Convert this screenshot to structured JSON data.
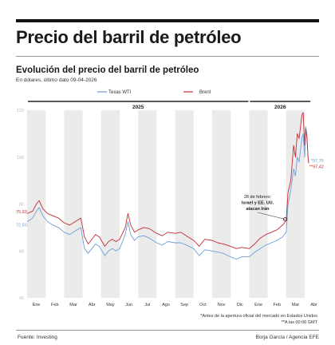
{
  "header": {
    "title": "Precio del barril de petróleo",
    "subtitle": "Evolución del precio del barril de petróleo",
    "note": "En dólares, último dato 09-04-2026"
  },
  "colors": {
    "wti": "#6f9ed8",
    "brent": "#c72a35",
    "band": "#ebebeb",
    "year_bar": "#5a5a5a"
  },
  "footer": {
    "source": "Fuente: Investing",
    "credit": "Borja García / Agencia EFE",
    "footnote_line1": "*Antes de la apertura oficial del mercado en Estados Unidos",
    "footnote_line2": "**A las 00:00 GMT"
  },
  "chart_data": {
    "type": "line",
    "title": "Evolución del precio del barril de petróleo",
    "subtitle": "En dólares, último dato 09-04-2026",
    "x_unit": "month index (0 = Jan 2025)",
    "ylim": [
      40,
      120
    ],
    "yticks": [
      40,
      60,
      80,
      100,
      120
    ],
    "years": [
      {
        "label": "2025",
        "from": 0,
        "to": 12
      },
      {
        "label": "2026",
        "from": 12,
        "to": 15.35
      }
    ],
    "months": [
      "Ene",
      "Feb",
      "Mar",
      "Abr",
      "May",
      "Jun",
      "Jul",
      "Ago",
      "Sep",
      "Oct",
      "Nov",
      "Dic",
      "Ene",
      "Feb",
      "Mar",
      "Abr"
    ],
    "legend": [
      "Texas WTI",
      "Brent"
    ],
    "start_labels": {
      "brent": "75,93",
      "wti": "72,50"
    },
    "end_labels": {
      "wti": "97,75",
      "brent": "97,42",
      "wti_marker": "*",
      "brent_marker": "**"
    },
    "annotation": [
      "28 de febrero:",
      "Israel y EE. UU.",
      "atacan Irán"
    ],
    "series": [
      {
        "name": "Brent",
        "points": [
          [
            0,
            75.9
          ],
          [
            0.3,
            77
          ],
          [
            0.5,
            80
          ],
          [
            0.65,
            81.5
          ],
          [
            0.85,
            78
          ],
          [
            1.1,
            76
          ],
          [
            1.4,
            75
          ],
          [
            1.7,
            74
          ],
          [
            2.0,
            72
          ],
          [
            2.3,
            71
          ],
          [
            2.6,
            72.5
          ],
          [
            2.9,
            74
          ],
          [
            3.1,
            66
          ],
          [
            3.3,
            63
          ],
          [
            3.5,
            65
          ],
          [
            3.7,
            67
          ],
          [
            3.9,
            66
          ],
          [
            4.2,
            62
          ],
          [
            4.4,
            64
          ],
          [
            4.6,
            65
          ],
          [
            4.8,
            64
          ],
          [
            5.0,
            65
          ],
          [
            5.3,
            70
          ],
          [
            5.45,
            76
          ],
          [
            5.6,
            71
          ],
          [
            5.8,
            68
          ],
          [
            6.0,
            69
          ],
          [
            6.3,
            70
          ],
          [
            6.6,
            69.5
          ],
          [
            7.0,
            67.5
          ],
          [
            7.3,
            66.5
          ],
          [
            7.6,
            68
          ],
          [
            8.0,
            67.5
          ],
          [
            8.3,
            68
          ],
          [
            8.6,
            66.5
          ],
          [
            9.0,
            64.5
          ],
          [
            9.3,
            62
          ],
          [
            9.6,
            65
          ],
          [
            10.0,
            64.5
          ],
          [
            10.3,
            63.5
          ],
          [
            10.6,
            63
          ],
          [
            11.0,
            62
          ],
          [
            11.3,
            61
          ],
          [
            11.6,
            61.5
          ],
          [
            12.0,
            61
          ],
          [
            12.3,
            63
          ],
          [
            12.6,
            65.5
          ],
          [
            12.9,
            67
          ],
          [
            13.2,
            68
          ],
          [
            13.5,
            69
          ],
          [
            13.8,
            71
          ],
          [
            14.0,
            73
          ],
          [
            14.1,
            85
          ],
          [
            14.25,
            90
          ],
          [
            14.4,
            105
          ],
          [
            14.5,
            100
          ],
          [
            14.6,
            110
          ],
          [
            14.7,
            108
          ],
          [
            14.85,
            118
          ],
          [
            14.92,
            119
          ],
          [
            15.0,
            105
          ],
          [
            15.05,
            112
          ],
          [
            15.12,
            108
          ],
          [
            15.18,
            100
          ],
          [
            15.22,
            97.4
          ]
        ]
      },
      {
        "name": "Texas WTI",
        "points": [
          [
            0,
            72.5
          ],
          [
            0.3,
            74
          ],
          [
            0.5,
            77
          ],
          [
            0.65,
            78.5
          ],
          [
            0.85,
            75
          ],
          [
            1.1,
            72.5
          ],
          [
            1.4,
            71
          ],
          [
            1.7,
            70
          ],
          [
            2.0,
            68
          ],
          [
            2.3,
            67
          ],
          [
            2.6,
            68.5
          ],
          [
            2.9,
            70
          ],
          [
            3.1,
            61
          ],
          [
            3.3,
            59
          ],
          [
            3.5,
            61
          ],
          [
            3.7,
            63
          ],
          [
            3.9,
            62
          ],
          [
            4.2,
            58
          ],
          [
            4.4,
            60
          ],
          [
            4.6,
            61
          ],
          [
            4.8,
            60
          ],
          [
            5.0,
            61
          ],
          [
            5.3,
            67
          ],
          [
            5.45,
            72.5
          ],
          [
            5.6,
            67
          ],
          [
            5.8,
            64.5
          ],
          [
            6.0,
            66
          ],
          [
            6.3,
            66.5
          ],
          [
            6.6,
            65.5
          ],
          [
            7.0,
            63.5
          ],
          [
            7.3,
            62.5
          ],
          [
            7.6,
            64
          ],
          [
            8.0,
            63.5
          ],
          [
            8.3,
            63.5
          ],
          [
            8.6,
            62.5
          ],
          [
            9.0,
            61
          ],
          [
            9.3,
            58
          ],
          [
            9.6,
            60.5
          ],
          [
            10.0,
            60
          ],
          [
            10.3,
            59.5
          ],
          [
            10.6,
            59
          ],
          [
            11.0,
            57.5
          ],
          [
            11.3,
            56.5
          ],
          [
            11.6,
            57.5
          ],
          [
            12.0,
            57.5
          ],
          [
            12.3,
            59.5
          ],
          [
            12.6,
            61
          ],
          [
            12.9,
            62.5
          ],
          [
            13.2,
            63.5
          ],
          [
            13.5,
            64.5
          ],
          [
            13.8,
            66
          ],
          [
            14.0,
            68
          ],
          [
            14.1,
            80
          ],
          [
            14.25,
            86
          ],
          [
            14.4,
            95
          ],
          [
            14.5,
            92
          ],
          [
            14.6,
            100
          ],
          [
            14.7,
            98
          ],
          [
            14.85,
            108
          ],
          [
            14.92,
            110
          ],
          [
            15.0,
            100
          ],
          [
            15.05,
            113
          ],
          [
            15.12,
            110
          ],
          [
            15.18,
            100
          ],
          [
            15.22,
            97.75
          ]
        ]
      }
    ]
  }
}
